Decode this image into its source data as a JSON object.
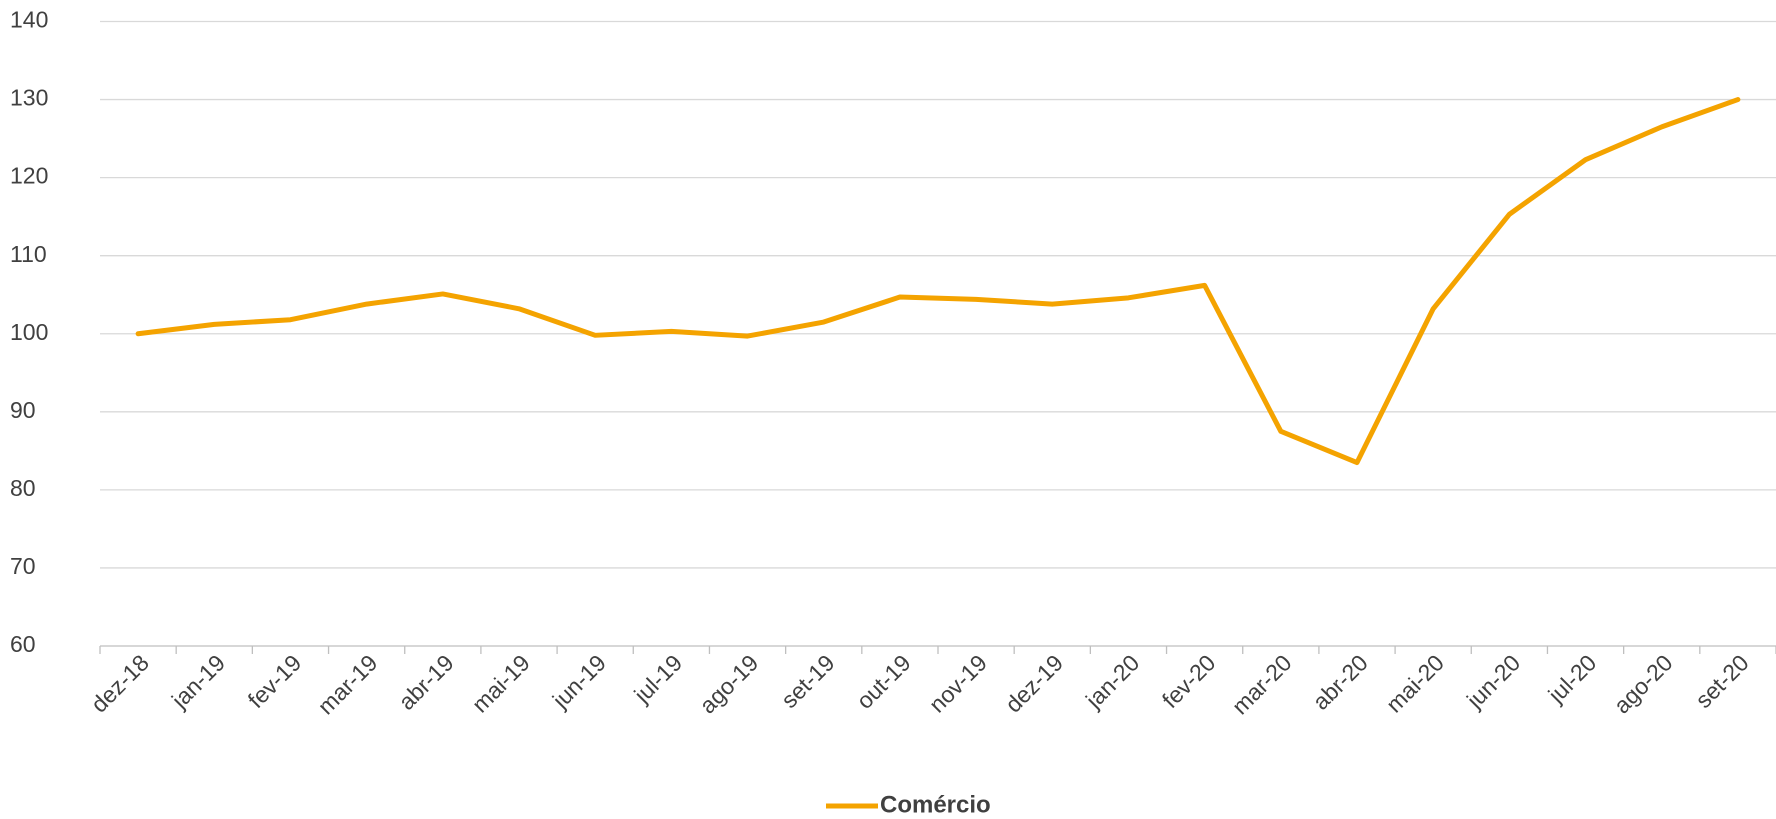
{
  "chart_data": {
    "type": "line",
    "categories": [
      "dez-18",
      "jan-19",
      "fev-19",
      "mar-19",
      "abr-19",
      "mai-19",
      "jun-19",
      "jul-19",
      "ago-19",
      "set-19",
      "out-19",
      "nov-19",
      "dez-19",
      "jan-20",
      "fev-20",
      "mar-20",
      "abr-20",
      "mai-20",
      "jun-20",
      "jul-20",
      "ago-20",
      "set-20"
    ],
    "series": [
      {
        "name": "Comércio",
        "color": "#f4a300",
        "values": [
          100.0,
          101.2,
          101.8,
          103.8,
          105.1,
          103.2,
          99.8,
          100.3,
          99.7,
          101.5,
          104.7,
          104.4,
          103.8,
          104.6,
          106.2,
          87.5,
          83.5,
          103.2,
          115.3,
          122.3,
          126.5,
          130.0
        ]
      }
    ],
    "ylim": [
      60,
      140
    ],
    "yticks": [
      60,
      70,
      80,
      90,
      100,
      110,
      120,
      130,
      140
    ],
    "grid": true,
    "legend": "bottom"
  }
}
